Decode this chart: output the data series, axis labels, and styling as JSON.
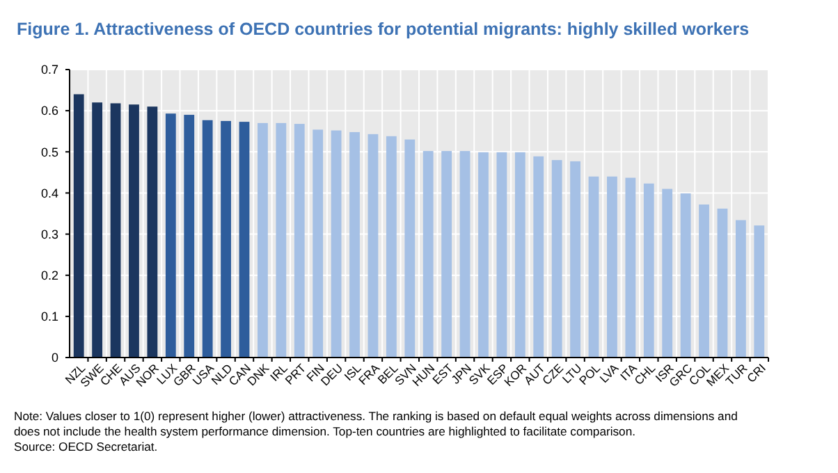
{
  "chart_data": {
    "type": "bar",
    "title": "Figure 1. Attractiveness of OECD countries for potential migrants: highly skilled workers",
    "categories": [
      "NZL",
      "SWE",
      "CHE",
      "AUS",
      "NOR",
      "LUX",
      "GBR",
      "USA",
      "NLD",
      "CAN",
      "DNK",
      "IRL",
      "PRT",
      "FIN",
      "DEU",
      "ISL",
      "FRA",
      "BEL",
      "SVN",
      "HUN",
      "EST",
      "JPN",
      "SVK",
      "ESP",
      "KOR",
      "AUT",
      "CZE",
      "LTU",
      "POL",
      "LVA",
      "ITA",
      "CHL",
      "ISR",
      "GRC",
      "COL",
      "MEX",
      "TUR",
      "CRI"
    ],
    "values": [
      0.64,
      0.62,
      0.618,
      0.615,
      0.61,
      0.593,
      0.59,
      0.577,
      0.575,
      0.573,
      0.57,
      0.57,
      0.568,
      0.554,
      0.552,
      0.548,
      0.543,
      0.538,
      0.53,
      0.502,
      0.502,
      0.502,
      0.499,
      0.499,
      0.499,
      0.489,
      0.48,
      0.477,
      0.44,
      0.44,
      0.437,
      0.423,
      0.41,
      0.399,
      0.372,
      0.362,
      0.334,
      0.321
    ],
    "colors": [
      "#1b365f",
      "#1b365f",
      "#1b365f",
      "#1b365f",
      "#1b365f",
      "#2e5d9c",
      "#2e5d9c",
      "#2e5d9c",
      "#2e5d9c",
      "#2e5d9c",
      "#a5c0e5",
      "#a5c0e5",
      "#a5c0e5",
      "#a5c0e5",
      "#a5c0e5",
      "#a5c0e5",
      "#a5c0e5",
      "#a5c0e5",
      "#a5c0e5",
      "#a5c0e5",
      "#a5c0e5",
      "#a5c0e5",
      "#a5c0e5",
      "#a5c0e5",
      "#a5c0e5",
      "#a5c0e5",
      "#a5c0e5",
      "#a5c0e5",
      "#a5c0e5",
      "#a5c0e5",
      "#a5c0e5",
      "#a5c0e5",
      "#a5c0e5",
      "#a5c0e5",
      "#a5c0e5",
      "#a5c0e5",
      "#a5c0e5",
      "#a5c0e5"
    ],
    "ylim": [
      0,
      0.7
    ],
    "yticks": [
      0,
      0.1,
      0.2,
      0.3,
      0.4,
      0.5,
      0.6,
      0.7
    ],
    "grid": true,
    "annotations": [
      "Note: Values closer to 1(0) represent higher (lower) attractiveness. The ranking is based on default equal weights across dimensions and does not include the health system performance dimension. Top-ten countries are highlighted to facilitate comparison.",
      "Source: OECD Secretariat."
    ]
  }
}
